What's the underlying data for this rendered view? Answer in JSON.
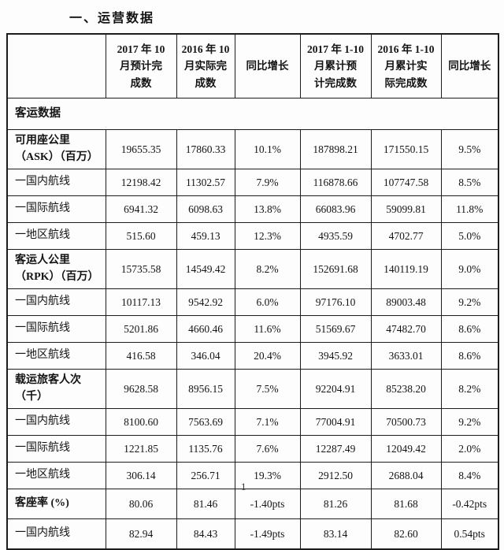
{
  "title": "一、运营数据",
  "table": {
    "columns": [
      "",
      "2017 年 10\n月预计完\n成数",
      "2016 年 10\n月实际完\n成数",
      "同比增长",
      "2017 年 1-10\n月累计预\n计完成数",
      "2016 年 1-10\n月累计实\n际完成数",
      "同比增长"
    ],
    "rows": [
      {
        "label": "客运数据",
        "merged": true,
        "bold": true,
        "values": []
      },
      {
        "label": "可用座公里\n（ASK）（百万）",
        "bold": true,
        "values": [
          "19655.35",
          "17860.33",
          "10.1%",
          "187898.21",
          "171550.15",
          "9.5%"
        ]
      },
      {
        "label": "一国内航线",
        "bold": false,
        "values": [
          "12198.42",
          "11302.57",
          "7.9%",
          "116878.66",
          "107747.58",
          "8.5%"
        ]
      },
      {
        "label": "一国际航线",
        "bold": false,
        "values": [
          "6941.32",
          "6098.63",
          "13.8%",
          "66083.96",
          "59099.81",
          "11.8%"
        ]
      },
      {
        "label": "一地区航线",
        "bold": false,
        "values": [
          "515.60",
          "459.13",
          "12.3%",
          "4935.59",
          "4702.77",
          "5.0%"
        ]
      },
      {
        "label": "客运人公里\n（RPK）（百万）",
        "bold": true,
        "values": [
          "15735.58",
          "14549.42",
          "8.2%",
          "152691.68",
          "140119.19",
          "9.0%"
        ]
      },
      {
        "label": "一国内航线",
        "bold": false,
        "values": [
          "10117.13",
          "9542.92",
          "6.0%",
          "97176.10",
          "89003.48",
          "9.2%"
        ]
      },
      {
        "label": "一国际航线",
        "bold": false,
        "values": [
          "5201.86",
          "4660.46",
          "11.6%",
          "51569.67",
          "47482.70",
          "8.6%"
        ]
      },
      {
        "label": "一地区航线",
        "bold": false,
        "values": [
          "416.58",
          "346.04",
          "20.4%",
          "3945.92",
          "3633.01",
          "8.6%"
        ]
      },
      {
        "label": "载运旅客人次\n（千）",
        "bold": true,
        "values": [
          "9628.58",
          "8956.15",
          "7.5%",
          "92204.91",
          "85238.20",
          "8.2%"
        ]
      },
      {
        "label": "一国内航线",
        "bold": false,
        "values": [
          "8100.60",
          "7563.69",
          "7.1%",
          "77004.91",
          "70500.73",
          "9.2%"
        ]
      },
      {
        "label": "一国际航线",
        "bold": false,
        "values": [
          "1221.85",
          "1135.76",
          "7.6%",
          "12287.49",
          "12049.42",
          "2.0%"
        ]
      },
      {
        "label": "一地区航线",
        "bold": false,
        "values": [
          "306.14",
          "256.71",
          "19.3%",
          "2912.50",
          "2688.04",
          "8.4%"
        ]
      },
      {
        "label": "客座率 (%)",
        "bold": true,
        "rate": true,
        "values": [
          "80.06",
          "81.46",
          "-1.40pts",
          "81.26",
          "81.68",
          "-0.42pts"
        ]
      },
      {
        "label": "一国内航线",
        "bold": false,
        "rate": true,
        "values": [
          "82.94",
          "84.43",
          "-1.49pts",
          "83.14",
          "82.60",
          "0.54pts"
        ]
      }
    ]
  },
  "footer": {
    "page_number": "1"
  }
}
